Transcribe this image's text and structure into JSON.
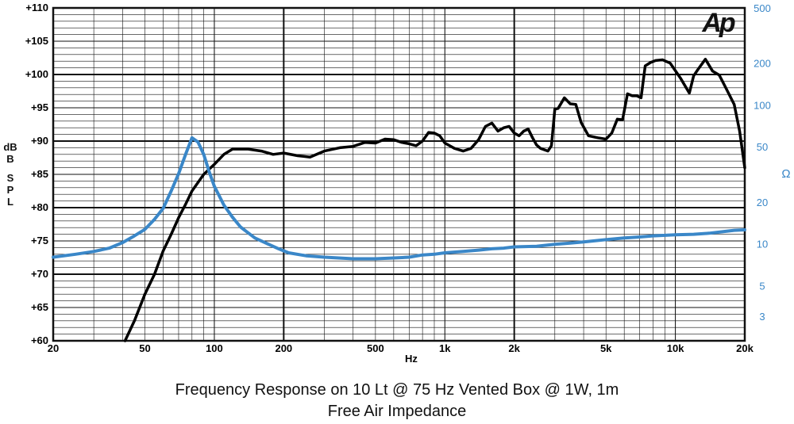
{
  "chart_data": {
    "type": "line",
    "title": "Frequency Response on 10 Lt @ 75 Hz Vented Box @ 1W, 1m",
    "subtitle": "Free Air Impedance",
    "logo_text": "Ap",
    "xlabel": "Hz",
    "ylabel_left": [
      "dB",
      "SPL"
    ],
    "ylabel_right": "Ω",
    "x_scale": "log",
    "xlim": [
      20,
      20000
    ],
    "x_ticks": [
      {
        "value": 20,
        "label": "20"
      },
      {
        "value": 50,
        "label": "50"
      },
      {
        "value": 100,
        "label": "100"
      },
      {
        "value": 200,
        "label": "200"
      },
      {
        "value": 500,
        "label": "500"
      },
      {
        "value": 1000,
        "label": "1k"
      },
      {
        "value": 2000,
        "label": "2k"
      },
      {
        "value": 5000,
        "label": "5k"
      },
      {
        "value": 10000,
        "label": "10k"
      },
      {
        "value": 20000,
        "label": "20k"
      }
    ],
    "ylim_left": [
      60,
      110
    ],
    "y_ticks_left": [
      "+60",
      "+65",
      "+70",
      "+75",
      "+80",
      "+85",
      "+90",
      "+95",
      "+100",
      "+105",
      "+110"
    ],
    "y_scale_right": "log",
    "ylim_right": [
      2,
      500
    ],
    "y_ticks_right": [
      {
        "value": 3,
        "label": "3"
      },
      {
        "value": 5,
        "label": "5"
      },
      {
        "value": 10,
        "label": "10"
      },
      {
        "value": 20,
        "label": "20"
      },
      {
        "value": 50,
        "label": "50"
      },
      {
        "value": 100,
        "label": "100"
      },
      {
        "value": 200,
        "label": "200"
      },
      {
        "value": 500,
        "label": "500"
      }
    ],
    "grid": true,
    "colors": {
      "spl": "#000000",
      "impedance": "#3a87c8",
      "grid": "#111111"
    },
    "series": [
      {
        "axis": "left",
        "x": [
          41,
          45,
          50,
          55,
          60,
          65,
          70,
          75,
          80,
          90,
          100,
          110,
          120,
          140,
          160,
          180,
          200,
          230,
          260,
          300,
          350,
          400,
          450,
          500,
          550,
          600,
          650,
          700,
          750,
          800,
          850,
          900,
          950,
          1000,
          1100,
          1200,
          1300,
          1400,
          1500,
          1600,
          1700,
          1800,
          1900,
          2000,
          2100,
          2200,
          2300,
          2400,
          2500,
          2600,
          2800,
          2900,
          3000,
          3100,
          3300,
          3500,
          3700,
          3900,
          4200,
          4600,
          5000,
          5300,
          5600,
          5900,
          6200,
          6500,
          6800,
          7100,
          7400,
          7800,
          8200,
          8800,
          9500,
          10500,
          11500,
          12000,
          12500,
          13500,
          14500,
          15500,
          16500,
          18000,
          19000,
          20000
        ],
        "values": [
          60,
          63,
          67,
          70,
          73.5,
          76,
          78.5,
          80.5,
          82.5,
          85,
          86.5,
          88,
          88.8,
          88.8,
          88.5,
          88,
          88.2,
          87.8,
          87.6,
          88.5,
          89,
          89.2,
          89.8,
          89.7,
          90.3,
          90.2,
          89.8,
          89.6,
          89.3,
          90,
          91.3,
          91.2,
          90.8,
          89.7,
          88.9,
          88.5,
          88.9,
          90.2,
          92.2,
          92.7,
          91.5,
          92,
          92.2,
          91.2,
          90.8,
          91.5,
          91.8,
          90.5,
          89.4,
          88.9,
          88.5,
          89.3,
          94.8,
          94.9,
          96.5,
          95.6,
          95.5,
          92.8,
          90.8,
          90.5,
          90.3,
          91.2,
          93.3,
          93.2,
          97.1,
          96.8,
          96.8,
          96.5,
          101.3,
          101.8,
          102.1,
          102.2,
          101.7,
          99.5,
          97.2,
          99.8,
          100.7,
          102.3,
          100.5,
          99.9,
          98.1,
          95.5,
          91.5,
          86
        ]
      },
      {
        "axis": "right",
        "x": [
          20,
          25,
          30,
          35,
          40,
          45,
          50,
          55,
          60,
          65,
          70,
          75,
          80,
          85,
          90,
          95,
          100,
          110,
          120,
          130,
          140,
          150,
          170,
          190,
          210,
          250,
          300,
          400,
          500,
          600,
          700,
          800,
          900,
          1000,
          1200,
          1400,
          1600,
          1800,
          2000,
          2500,
          3000,
          3500,
          4000,
          5000,
          6000,
          7000,
          8000,
          10000,
          12000,
          14000,
          16000,
          18000,
          20000
        ],
        "values": [
          8,
          8.4,
          8.8,
          9.3,
          10.2,
          11.4,
          12.7,
          15,
          18,
          24,
          32,
          44,
          58,
          54,
          44,
          33,
          26,
          19,
          15.5,
          13.2,
          12,
          11,
          10,
          9.2,
          8.6,
          8.2,
          8,
          7.8,
          7.8,
          7.9,
          8,
          8.3,
          8.4,
          8.6,
          8.8,
          9,
          9.2,
          9.3,
          9.5,
          9.6,
          9.9,
          10.1,
          10.3,
          10.7,
          11,
          11.2,
          11.4,
          11.6,
          11.7,
          11.9,
          12.2,
          12.5,
          12.6
        ]
      }
    ]
  }
}
